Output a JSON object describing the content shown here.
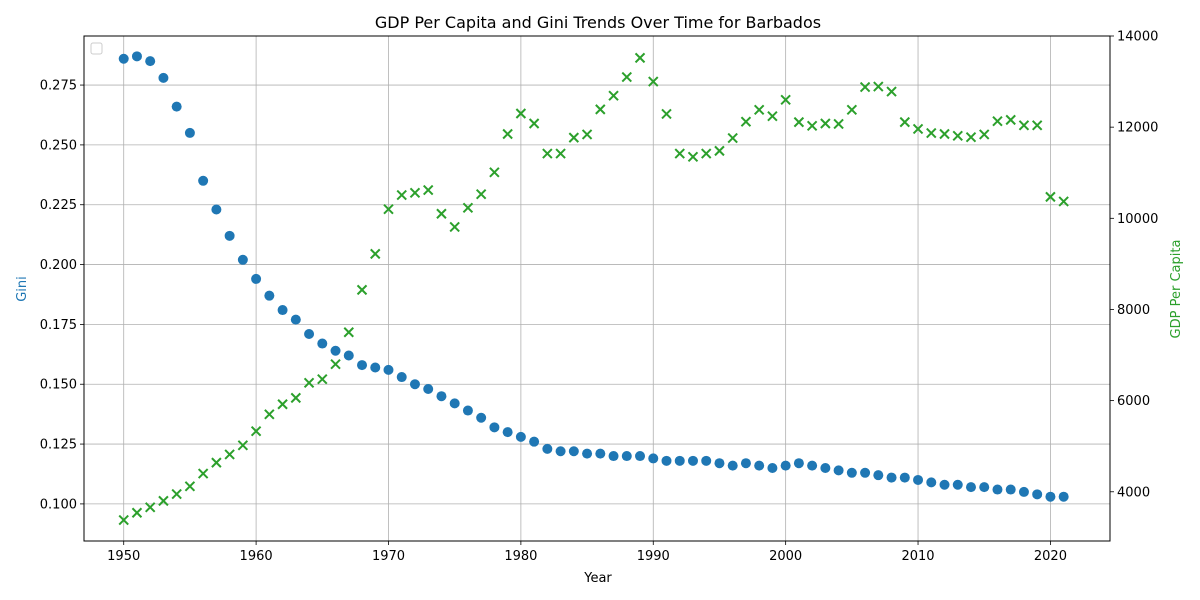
{
  "chart_data": {
    "type": "scatter",
    "title": "GDP Per Capita and Gini Trends Over Time for Barbados",
    "xlabel": "Year",
    "ylabel_left": "Gini",
    "ylabel_right": "GDP Per Capita",
    "xlim": [
      1947,
      2024.5
    ],
    "ylim_left": [
      0.0845,
      0.2955
    ],
    "ylim_right": [
      2920,
      14000
    ],
    "x_ticks": [
      1950,
      1960,
      1970,
      1980,
      1990,
      2000,
      2010,
      2020
    ],
    "y_ticks_left": [
      0.1,
      0.125,
      0.15,
      0.175,
      0.2,
      0.225,
      0.25,
      0.275
    ],
    "y_ticks_right": [
      4000,
      6000,
      8000,
      10000,
      12000,
      14000
    ],
    "grid": true,
    "legend": "top-left (empty)",
    "colors": {
      "gini": "#1f77b4",
      "gdp": "#2ca02c"
    },
    "x": [
      1950,
      1951,
      1952,
      1953,
      1954,
      1955,
      1956,
      1957,
      1958,
      1959,
      1960,
      1961,
      1962,
      1963,
      1964,
      1965,
      1966,
      1967,
      1968,
      1969,
      1970,
      1971,
      1972,
      1973,
      1974,
      1975,
      1976,
      1977,
      1978,
      1979,
      1980,
      1981,
      1982,
      1983,
      1984,
      1985,
      1986,
      1987,
      1988,
      1989,
      1990,
      1991,
      1992,
      1993,
      1994,
      1995,
      1996,
      1997,
      1998,
      1999,
      2000,
      2001,
      2002,
      2003,
      2004,
      2005,
      2006,
      2007,
      2008,
      2009,
      2010,
      2011,
      2012,
      2013,
      2014,
      2015,
      2016,
      2017,
      2018,
      2019,
      2020,
      2021
    ],
    "series": [
      {
        "axis": "left",
        "marker": "circle",
        "values": [
          0.286,
          0.287,
          0.285,
          0.278,
          0.266,
          0.255,
          0.235,
          0.223,
          0.212,
          0.202,
          0.194,
          0.187,
          0.181,
          0.177,
          0.171,
          0.167,
          0.164,
          0.162,
          0.158,
          0.157,
          0.156,
          0.153,
          0.15,
          0.148,
          0.145,
          0.142,
          0.139,
          0.136,
          0.132,
          0.13,
          0.128,
          0.126,
          0.123,
          0.122,
          0.122,
          0.121,
          0.121,
          0.12,
          0.12,
          0.12,
          0.119,
          0.118,
          0.118,
          0.118,
          0.118,
          0.117,
          0.116,
          0.117,
          0.116,
          0.115,
          0.116,
          0.117,
          0.116,
          0.115,
          0.114,
          0.113,
          0.113,
          0.112,
          0.111,
          0.111,
          0.11,
          0.109,
          0.108,
          0.108,
          0.107,
          0.107,
          0.106,
          0.106,
          0.105,
          0.104,
          0.103,
          0.103
        ]
      },
      {
        "axis": "right",
        "marker": "x",
        "values": [
          3380,
          3540,
          3660,
          3800,
          3950,
          4120,
          4400,
          4640,
          4820,
          5020,
          5330,
          5700,
          5920,
          6060,
          6390,
          6470,
          6800,
          7500,
          8430,
          9220,
          10200,
          10510,
          10560,
          10620,
          10100,
          9810,
          10230,
          10530,
          11010,
          11850,
          12300,
          12080,
          11420,
          11420,
          11770,
          11840,
          12390,
          12690,
          13100,
          13520,
          13000,
          12290,
          11420,
          11350,
          11420,
          11480,
          11760,
          12120,
          12380,
          12240,
          12600,
          12110,
          12030,
          12080,
          12070,
          12380,
          12880,
          12890,
          12780,
          12110,
          11960,
          11870,
          11850,
          11810,
          11780,
          11840,
          12130,
          12160,
          12040,
          12040,
          10470,
          10370
        ]
      }
    ]
  }
}
